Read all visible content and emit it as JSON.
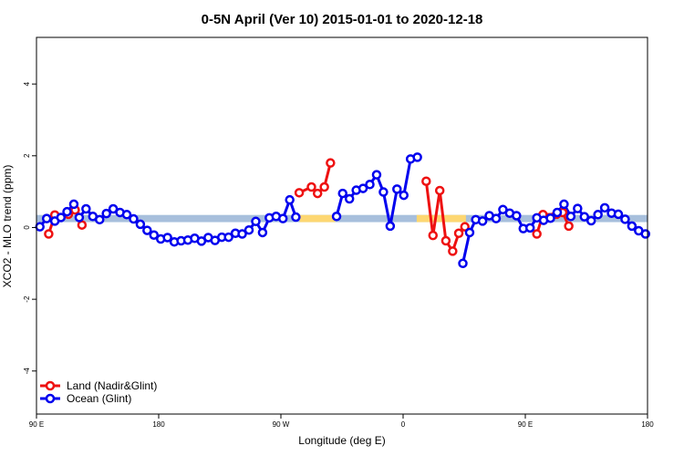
{
  "chart_data": {
    "type": "line",
    "title": "0-5N April (Ver 10)   2015-01-01 to 2020-12-18",
    "xlabel": "Longitude (deg E)",
    "ylabel": "XCO2 - MLO trend (ppm)",
    "xlim": [
      0,
      360
    ],
    "ylim": [
      -5.2,
      5.3
    ],
    "x_ticks": [
      {
        "value": 0,
        "label": "90 E"
      },
      {
        "value": 72,
        "label": "180"
      },
      {
        "value": 144,
        "label": "90 W"
      },
      {
        "value": 216,
        "label": "0"
      },
      {
        "value": 288,
        "label": "90 E"
      },
      {
        "value": 360,
        "label": "180"
      }
    ],
    "y_ticks": [
      {
        "value": -4,
        "label": "-4"
      },
      {
        "value": -2,
        "label": "-2"
      },
      {
        "value": 0,
        "label": "0"
      },
      {
        "value": 2,
        "label": "2"
      },
      {
        "value": 4,
        "label": "4"
      }
    ],
    "reference_band": {
      "y_range": [
        0.15,
        0.35
      ],
      "color": "#a7bfdc",
      "highlight_color": "#fdd772",
      "highlight_x_ranges": [
        [
          4,
          9
        ],
        [
          155,
          176
        ],
        [
          224,
          253
        ],
        [
          293,
          300
        ]
      ]
    },
    "series": [
      {
        "name": "Land (Nadir&Glint)",
        "color": "#ee1111",
        "segments": [
          [
            [
              7.2,
              -0.18
            ],
            [
              10.8,
              0.35
            ],
            [
              18.8,
              0.37
            ],
            [
              22.8,
              0.49
            ],
            [
              26.8,
              0.07
            ]
          ],
          [
            [
              154.8,
              0.97
            ],
            [
              162.0,
              1.13
            ],
            [
              165.6,
              0.95
            ],
            [
              169.6,
              1.13
            ],
            [
              173.2,
              1.8
            ]
          ],
          [
            [
              229.6,
              1.29
            ],
            [
              233.6,
              -0.22
            ],
            [
              237.6,
              1.03
            ],
            [
              241.2,
              -0.37
            ],
            [
              245.2,
              -0.66
            ],
            [
              248.8,
              -0.16
            ],
            [
              252.4,
              0.02
            ]
          ],
          [
            [
              294.8,
              -0.18
            ],
            [
              298.4,
              0.36
            ],
            [
              306.4,
              0.37
            ],
            [
              310.0,
              0.42
            ],
            [
              313.6,
              0.04
            ]
          ]
        ]
      },
      {
        "name": "Ocean (Glint)",
        "color": "#0000ee",
        "segments": [
          [
            [
              2,
              0.02
            ],
            [
              6,
              0.25
            ],
            [
              10.8,
              0.18
            ],
            [
              14.4,
              0.28
            ],
            [
              18,
              0.44
            ],
            [
              22,
              0.65
            ],
            [
              25.2,
              0.28
            ],
            [
              29.2,
              0.52
            ],
            [
              33.2,
              0.31
            ],
            [
              37.2,
              0.22
            ],
            [
              41.2,
              0.39
            ],
            [
              45.2,
              0.52
            ],
            [
              49.2,
              0.42
            ],
            [
              53.2,
              0.36
            ],
            [
              57.2,
              0.24
            ],
            [
              61.2,
              0.09
            ],
            [
              65.2,
              -0.08
            ],
            [
              69.2,
              -0.21
            ],
            [
              73.2,
              -0.32
            ],
            [
              77.2,
              -0.28
            ],
            [
              81.2,
              -0.4
            ],
            [
              85.2,
              -0.37
            ],
            [
              89.2,
              -0.35
            ],
            [
              93.2,
              -0.3
            ],
            [
              97.2,
              -0.38
            ],
            [
              101.2,
              -0.28
            ],
            [
              105.2,
              -0.36
            ],
            [
              109.2,
              -0.27
            ],
            [
              113.2,
              -0.27
            ],
            [
              117.2,
              -0.16
            ],
            [
              121.2,
              -0.18
            ],
            [
              125.2,
              -0.07
            ],
            [
              129.2,
              0.17
            ],
            [
              133.2,
              -0.14
            ],
            [
              137.2,
              0.27
            ],
            [
              141.2,
              0.31
            ],
            [
              145.2,
              0.25
            ],
            [
              149.2,
              0.77
            ],
            [
              152.8,
              0.29
            ]
          ],
          [
            [
              176.8,
              0.31
            ],
            [
              180.4,
              0.95
            ],
            [
              184.4,
              0.8
            ],
            [
              188.4,
              1.04
            ],
            [
              192.4,
              1.09
            ],
            [
              196.4,
              1.2
            ],
            [
              200.4,
              1.47
            ],
            [
              204.4,
              0.99
            ],
            [
              208.4,
              0.04
            ],
            [
              212.4,
              1.07
            ],
            [
              216.4,
              0.9
            ],
            [
              220.4,
              1.91
            ],
            [
              224.4,
              1.96
            ]
          ],
          [
            [
              251.2,
              -1.0
            ],
            [
              255.2,
              -0.14
            ],
            [
              258.8,
              0.22
            ],
            [
              262.8,
              0.18
            ],
            [
              266.8,
              0.33
            ],
            [
              270.8,
              0.25
            ],
            [
              274.8,
              0.5
            ],
            [
              278.8,
              0.4
            ],
            [
              282.8,
              0.33
            ],
            [
              286.8,
              -0.03
            ],
            [
              290.8,
              -0.01
            ],
            [
              294.8,
              0.27
            ],
            [
              298.8,
              0.2
            ],
            [
              302.8,
              0.26
            ],
            [
              306.8,
              0.42
            ],
            [
              310.8,
              0.65
            ],
            [
              314.8,
              0.31
            ],
            [
              318.8,
              0.53
            ],
            [
              322.8,
              0.3
            ],
            [
              326.8,
              0.19
            ],
            [
              330.8,
              0.36
            ],
            [
              334.8,
              0.55
            ],
            [
              338.8,
              0.4
            ],
            [
              342.8,
              0.37
            ],
            [
              346.8,
              0.23
            ],
            [
              350.8,
              0.04
            ],
            [
              354.8,
              -0.09
            ],
            [
              358.8,
              -0.18
            ]
          ]
        ]
      }
    ],
    "legend": {
      "position": "bottom-left",
      "entries": [
        "Land (Nadir&Glint)",
        "Ocean (Glint)"
      ]
    }
  }
}
